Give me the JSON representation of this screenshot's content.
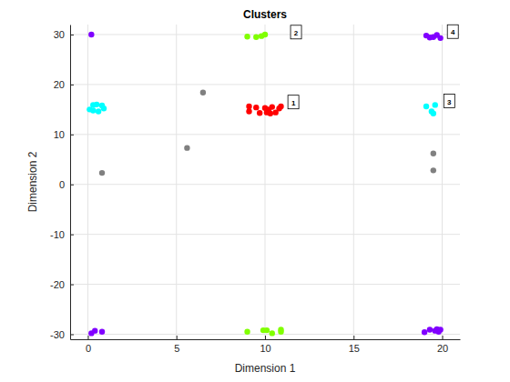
{
  "chart_data": {
    "type": "scatter",
    "title": "Clusters",
    "x_label": "Dimension 1",
    "y_label": "Dimension 2",
    "xlim": [
      -1,
      21
    ],
    "ylim": [
      -31,
      32
    ],
    "xticks": [
      0,
      5,
      10,
      15,
      20
    ],
    "yticks": [
      -30,
      -20,
      -10,
      0,
      10,
      20,
      30
    ],
    "grid": true,
    "marker": "circle",
    "series": [
      {
        "color": "#ff0000",
        "x": [
          9.1,
          9.1,
          9.5,
          9.7,
          10.0,
          10.1,
          10.3,
          10.4,
          10.6,
          10.8,
          10.9,
          10.2
        ],
        "values": [
          15.6,
          14.6,
          15.4,
          14.3,
          15.3,
          14.4,
          14.2,
          15.5,
          14.4,
          15.2,
          15.6,
          15.0
        ]
      },
      {
        "color": "#80ff00",
        "x": [
          9.0,
          9.5,
          9.8,
          10.0,
          9.0,
          9.9,
          10.1,
          10.4,
          10.9,
          10.9
        ],
        "values": [
          29.6,
          29.5,
          29.7,
          30.0,
          -29.5,
          -29.2,
          -29.2,
          -29.8,
          -29.1,
          -29.5
        ]
      },
      {
        "color": "#00ffff",
        "x": [
          0.1,
          0.3,
          0.5,
          0.6,
          0.8,
          0.9,
          0.3,
          19.1,
          19.4,
          19.5,
          19.6
        ],
        "values": [
          15.0,
          15.9,
          16.0,
          14.6,
          15.8,
          15.2,
          14.8,
          15.6,
          14.6,
          14.2,
          15.9
        ]
      },
      {
        "color": "#8000ff",
        "x": [
          0.2,
          19.1,
          19.3,
          19.5,
          19.7,
          19.9,
          0.2,
          0.4,
          0.8,
          19.0,
          19.3,
          19.6,
          19.7,
          19.9,
          19.8
        ],
        "values": [
          30.0,
          29.8,
          29.4,
          29.5,
          29.9,
          29.3,
          -29.8,
          -29.3,
          -29.5,
          -29.6,
          -29.1,
          -29.3,
          -29.0,
          -29.1,
          -29.5
        ]
      },
      {
        "color": "#808080",
        "x": [
          0.8,
          5.6,
          6.5,
          19.5,
          19.5
        ],
        "values": [
          2.3,
          7.3,
          18.4,
          6.2,
          2.8
        ]
      }
    ],
    "annotations": [
      {
        "text": "1",
        "x": 11.6,
        "y": 16.4
      },
      {
        "text": "2",
        "x": 11.75,
        "y": 30.4
      },
      {
        "text": "3",
        "x": 20.4,
        "y": 16.6
      },
      {
        "text": "4",
        "x": 20.6,
        "y": 30.5
      }
    ]
  }
}
